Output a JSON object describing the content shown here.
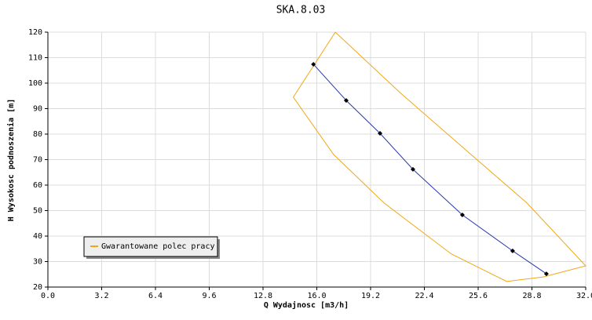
{
  "chart_data": {
    "type": "line",
    "title": "SKA.8.03",
    "x_label": "Q Wydajnosc [m3/h]",
    "y_label": "H Wysokosc podnoszenia [m]",
    "xlim": [
      0,
      32
    ],
    "ylim": [
      20,
      120
    ],
    "xticks": [
      {
        "value": 0,
        "label": "0.0"
      },
      3.2,
      6.4,
      9.6,
      12.8,
      {
        "value": 16,
        "label": "16.0"
      },
      19.2,
      22.4,
      25.6,
      28.8,
      {
        "value": 32,
        "label": "32.0"
      }
    ],
    "yticks": [
      20,
      30,
      40,
      50,
      60,
      70,
      80,
      90,
      100,
      110,
      120
    ],
    "grid": true,
    "legend": "lower left",
    "series": [
      {
        "name": "Gwarantowane polec pracy",
        "color": "#f0a818",
        "x": [
          17.1,
          21,
          25,
          28.5,
          32.0,
          29.5,
          27.3,
          24,
          20,
          17,
          14.6,
          17.1
        ],
        "values": [
          120,
          96,
          73,
          53,
          28.3,
          24,
          22.2,
          33,
          53,
          72,
          94.5,
          120
        ]
      },
      {
        "color": "#2838b0",
        "markers": true,
        "x": [
          15.8,
          17.75,
          19.76,
          21.72,
          24.66,
          27.65,
          29.66
        ],
        "values": [
          107.4,
          93.2,
          80.3,
          66.2,
          48.3,
          34.2,
          25.2
        ]
      }
    ]
  }
}
